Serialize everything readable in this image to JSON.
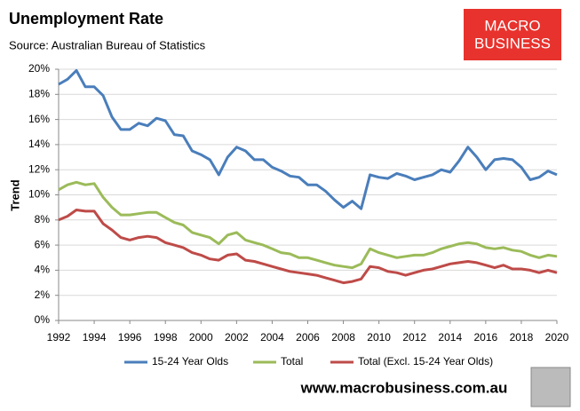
{
  "chart_data": {
    "type": "line",
    "title": "Unemployment Rate",
    "subtitle": "Source: Australian Bureau of Statistics",
    "ylabel": "Trend",
    "x": [
      1992,
      1992.5,
      1993,
      1993.5,
      1994,
      1994.5,
      1995,
      1995.5,
      1996,
      1996.5,
      1997,
      1997.5,
      1998,
      1998.5,
      1999,
      1999.5,
      2000,
      2000.5,
      2001,
      2001.5,
      2002,
      2002.5,
      2003,
      2003.5,
      2004,
      2004.5,
      2005,
      2005.5,
      2006,
      2006.5,
      2007,
      2007.5,
      2008,
      2008.5,
      2009,
      2009.5,
      2010,
      2010.5,
      2011,
      2011.5,
      2012,
      2012.5,
      2013,
      2013.5,
      2014,
      2014.5,
      2015,
      2015.5,
      2016,
      2016.5,
      2017,
      2017.5,
      2018,
      2018.5,
      2019,
      2019.5,
      2020
    ],
    "series": [
      {
        "name": "15-24 Year Olds",
        "color": "#4a7ebb",
        "values": [
          18.8,
          19.2,
          19.9,
          18.6,
          18.6,
          17.9,
          16.2,
          15.2,
          15.2,
          15.7,
          15.5,
          16.1,
          15.9,
          14.8,
          14.7,
          13.5,
          13.2,
          12.8,
          11.6,
          13.0,
          13.8,
          13.5,
          12.8,
          12.8,
          12.2,
          11.9,
          11.5,
          11.4,
          10.8,
          10.8,
          10.3,
          9.6,
          9.0,
          9.5,
          8.9,
          11.6,
          11.4,
          11.3,
          11.7,
          11.5,
          11.2,
          11.4,
          11.6,
          12.0,
          11.8,
          12.7,
          13.8,
          13.0,
          12.0,
          12.8,
          12.9,
          12.8,
          12.2,
          11.2,
          11.4,
          11.9,
          11.6
        ]
      },
      {
        "name": "Total",
        "color": "#9bbb59",
        "values": [
          10.4,
          10.8,
          11.0,
          10.8,
          10.9,
          9.8,
          9.0,
          8.4,
          8.4,
          8.5,
          8.6,
          8.6,
          8.2,
          7.8,
          7.6,
          7.0,
          6.8,
          6.6,
          6.1,
          6.8,
          7.0,
          6.4,
          6.2,
          6.0,
          5.7,
          5.4,
          5.3,
          5.0,
          5.0,
          4.8,
          4.6,
          4.4,
          4.3,
          4.2,
          4.5,
          5.7,
          5.4,
          5.2,
          5.0,
          5.1,
          5.2,
          5.2,
          5.4,
          5.7,
          5.9,
          6.1,
          6.2,
          6.1,
          5.8,
          5.7,
          5.8,
          5.6,
          5.5,
          5.2,
          5.0,
          5.2,
          5.1
        ]
      },
      {
        "name": "Total (Excl. 15-24 Year Olds)",
        "color": "#be4b48",
        "values": [
          8.0,
          8.3,
          8.8,
          8.7,
          8.7,
          7.7,
          7.2,
          6.6,
          6.4,
          6.6,
          6.7,
          6.6,
          6.2,
          6.0,
          5.8,
          5.4,
          5.2,
          4.9,
          4.8,
          5.2,
          5.3,
          4.8,
          4.7,
          4.5,
          4.3,
          4.1,
          3.9,
          3.8,
          3.7,
          3.6,
          3.4,
          3.2,
          3.0,
          3.1,
          3.3,
          4.3,
          4.2,
          3.9,
          3.8,
          3.6,
          3.8,
          4.0,
          4.1,
          4.3,
          4.5,
          4.6,
          4.7,
          4.6,
          4.4,
          4.2,
          4.4,
          4.1,
          4.1,
          4.0,
          3.8,
          4.0,
          3.8
        ]
      }
    ],
    "xlim": [
      1992,
      2020
    ],
    "xticks": [
      1992,
      1994,
      1996,
      1998,
      2000,
      2002,
      2004,
      2006,
      2008,
      2010,
      2012,
      2014,
      2016,
      2018,
      2020
    ],
    "ylim": [
      0,
      20
    ],
    "yticks": [
      {
        "value": 0,
        "label": "0%"
      },
      {
        "value": 2,
        "label": "2%"
      },
      {
        "value": 4,
        "label": "4%"
      },
      {
        "value": 6,
        "label": "6%"
      },
      {
        "value": 8,
        "label": "8%"
      },
      {
        "value": 10,
        "label": "10%"
      },
      {
        "value": 12,
        "label": "12%"
      },
      {
        "value": 14,
        "label": "14%"
      },
      {
        "value": 16,
        "label": "16%"
      },
      {
        "value": 18,
        "label": "18%"
      },
      {
        "value": 20,
        "label": "20%"
      }
    ],
    "grid": true,
    "legend": "bottom"
  },
  "logo": [
    "MACRO",
    "BUSINESS"
  ],
  "footer": "www.macrobusiness.com.au"
}
